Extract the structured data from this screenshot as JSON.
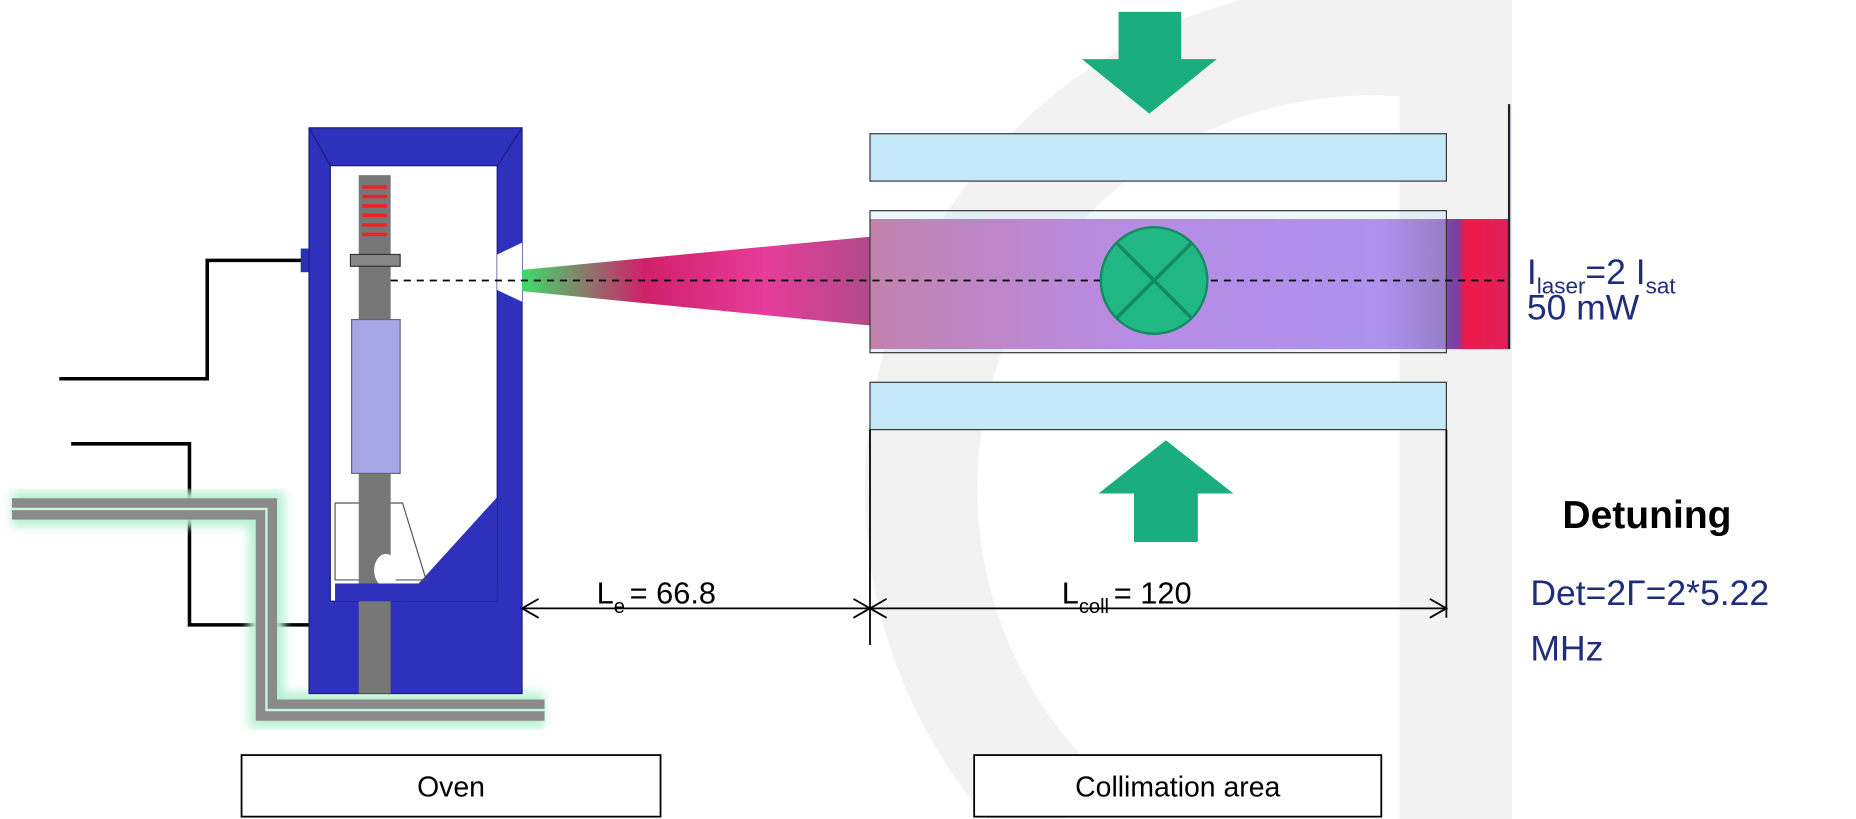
{
  "dimensions": {
    "oven_gap": {
      "symbol": "L",
      "subscript": "e",
      "text": "= 66.8"
    },
    "collimation_length": {
      "symbol": "L",
      "subscript": "coll",
      "text": "= 120"
    }
  },
  "laser": {
    "intensity": {
      "symbol": "I",
      "subscript": "laser",
      "text": "=2 I",
      "text_subscript": "sat"
    },
    "power": "50 mW"
  },
  "detuning": {
    "title": "Detuning",
    "line1": "Det=2Γ=2*5.22",
    "line2": "MHz"
  },
  "boxes": {
    "oven": "Oven",
    "collimation": "Collimation area"
  }
}
